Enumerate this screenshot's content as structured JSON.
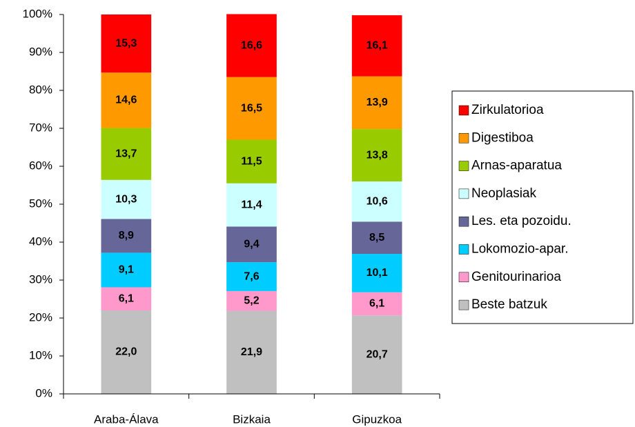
{
  "chart_data": {
    "type": "stacked_bar",
    "categories": [
      "Araba-Álava",
      "Bizkaia",
      "Gipuzkoa"
    ],
    "series": [
      {
        "name": "Beste batzuk",
        "color": "#c0c0c0",
        "values": [
          22.0,
          21.9,
          20.7
        ],
        "value_labels": [
          "22,0",
          "21,9",
          "20,7"
        ]
      },
      {
        "name": "Genitourinarioa",
        "color": "#ff99cc",
        "values": [
          6.1,
          5.2,
          6.1
        ],
        "value_labels": [
          "6,1",
          "5,2",
          "6,1"
        ]
      },
      {
        "name": "Lokomozio-apar.",
        "color": "#00ccff",
        "values": [
          9.1,
          7.6,
          10.1
        ],
        "value_labels": [
          "9,1",
          "7,6",
          "10,1"
        ]
      },
      {
        "name": "Les. eta pozoidu.",
        "color": "#666699",
        "values": [
          8.9,
          9.4,
          8.5
        ],
        "value_labels": [
          "8,9",
          "9,4",
          "8,5"
        ]
      },
      {
        "name": "Neoplasiak",
        "color": "#ccffff",
        "values": [
          10.3,
          11.4,
          10.6
        ],
        "value_labels": [
          "10,3",
          "11,4",
          "10,6"
        ]
      },
      {
        "name": "Arnas-aparatua",
        "color": "#99cc00",
        "values": [
          13.7,
          11.5,
          13.8
        ],
        "value_labels": [
          "13,7",
          "11,5",
          "13,8"
        ]
      },
      {
        "name": "Digestiboa",
        "color": "#ff9900",
        "values": [
          14.6,
          16.5,
          13.9
        ],
        "value_labels": [
          "14,6",
          "16,5",
          "13,9"
        ]
      },
      {
        "name": "Zirkulatorioa",
        "color": "#ff0000",
        "values": [
          15.3,
          16.6,
          16.1
        ],
        "value_labels": [
          "15,3",
          "16,6",
          "16,1"
        ]
      }
    ],
    "ylim": [
      0,
      100
    ],
    "yticks": [
      {
        "value": 0,
        "label": "0%"
      },
      {
        "value": 10,
        "label": "10%"
      },
      {
        "value": 20,
        "label": "20%"
      },
      {
        "value": 30,
        "label": "30%"
      },
      {
        "value": 40,
        "label": "40%"
      },
      {
        "value": 50,
        "label": "50%"
      },
      {
        "value": 60,
        "label": "60%"
      },
      {
        "value": 70,
        "label": "70%"
      },
      {
        "value": 80,
        "label": "80%"
      },
      {
        "value": 90,
        "label": "90%"
      },
      {
        "value": 100,
        "label": "100%"
      }
    ],
    "grid": false,
    "legend": "right"
  }
}
